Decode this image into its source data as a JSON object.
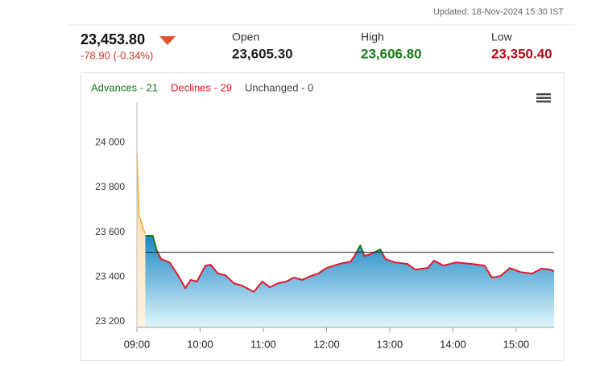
{
  "header": {
    "updated": "Updated: 18-Nov-2024 15:30 IST",
    "price": "23,453.80",
    "change": "-78.90 (-0.34%)",
    "stats": [
      {
        "label": "Open",
        "value": "23,605.30",
        "color": "#222222"
      },
      {
        "label": "High",
        "value": "23,606.80",
        "color": "#1a7a1a"
      },
      {
        "label": "Low",
        "value": "23,350.40",
        "color": "#b0101a"
      }
    ]
  },
  "legend": [
    {
      "text": "Advances - 21",
      "color": "#1a7a1a"
    },
    {
      "text": "Declines - 29",
      "color": "#e0192c"
    },
    {
      "text": "Unchanged - 0",
      "color": "#444444"
    }
  ],
  "chart_data": {
    "type": "area",
    "xlim": [
      "09:00",
      "15:36"
    ],
    "xticks": [
      "09:00",
      "10:00",
      "11:00",
      "12:00",
      "13:00",
      "14:00",
      "15:00"
    ],
    "ylim": [
      23175,
      24180
    ],
    "yticks": [
      {
        "value": 23200,
        "label": "23 200"
      },
      {
        "value": 23400,
        "label": "23 400"
      },
      {
        "value": 23600,
        "label": "23 600"
      },
      {
        "value": 23800,
        "label": "23 800"
      },
      {
        "value": 24000,
        "label": "24 000"
      }
    ],
    "reference_line": 23510,
    "up_color": "#1a7a1a",
    "down_color": "#e0192c",
    "series": [
      {
        "color": "#f5a623",
        "x": [
          "09:00",
          "09:02",
          "09:04",
          "09:06",
          "09:08"
        ],
        "values": [
          23953,
          23673,
          23648,
          23612,
          23595
        ]
      },
      {
        "color": "#1a85c4",
        "x": [
          "09:08",
          "09:15",
          "09:19",
          "09:23",
          "09:31",
          "09:38",
          "09:46",
          "09:51",
          "09:57",
          "10:05",
          "10:10",
          "10:17",
          "10:24",
          "10:32",
          "10:40",
          "10:51",
          "10:59",
          "11:06",
          "11:14",
          "11:22",
          "11:29",
          "11:37",
          "11:45",
          "11:52",
          "12:00",
          "12:12",
          "12:23",
          "12:28",
          "12:32",
          "12:36",
          "12:42",
          "12:51",
          "12:56",
          "13:05",
          "13:17",
          "13:24",
          "13:36",
          "13:42",
          "13:51",
          "14:03",
          "14:18",
          "14:30",
          "14:37",
          "14:45",
          "14:54",
          "15:04",
          "15:15",
          "15:24",
          "15:32",
          "15:36"
        ],
        "values": [
          23584,
          23584,
          23516,
          23480,
          23465,
          23415,
          23350,
          23387,
          23380,
          23450,
          23455,
          23415,
          23408,
          23372,
          23361,
          23333,
          23380,
          23354,
          23372,
          23380,
          23397,
          23387,
          23404,
          23415,
          23440,
          23458,
          23469,
          23505,
          23541,
          23494,
          23502,
          23523,
          23480,
          23465,
          23458,
          23433,
          23440,
          23473,
          23451,
          23465,
          23458,
          23451,
          23397,
          23404,
          23440,
          23422,
          23415,
          23437,
          23433,
          23426
        ]
      }
    ]
  }
}
